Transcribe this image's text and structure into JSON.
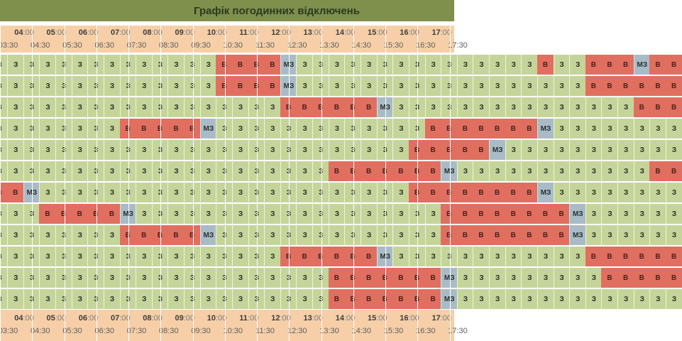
{
  "title": "Графік погодинних відключень",
  "header": {
    "hours": [
      "04:00",
      "05:00",
      "06:00",
      "07:00",
      "08:00",
      "09:00",
      "10:00",
      "11:00",
      "12:00",
      "13:00",
      "14:00",
      "15:00",
      "16:00",
      "17:00"
    ],
    "half_hours": [
      "03:30",
      "04:30",
      "05:30",
      "06:30",
      "07:30",
      "08:30",
      "09:30",
      "10:30",
      "11:30",
      "12:30",
      "13:30",
      "14:30",
      "15:30",
      "16:30",
      "17:30"
    ]
  },
  "legend": {
    "on": "З",
    "off": "В",
    "maybe": "МЗ"
  },
  "colors": {
    "title_bg": "#7f8f4c",
    "header_bg": "#f6cfa8",
    "on": "#c5d59a",
    "off": "#e06f5f",
    "maybe": "#a9bcc6"
  },
  "rows": [
    "ZZZZZZZZZZZZZZBBBBMZZZZZZZZZZZZZZZBZZBBBMBB",
    "ZZZZZZZZZZZZZZBBBBMZZZZZZZZZZZZZZZZZZBBBBBB",
    "ZZZZZZZZZZZZZZZZZZBBBBBBMZZZZZZZZZZZZZZZBBB",
    "ZZZZZZZZBBBBBMZZZZZZZZZZZZZBBBBBBBMZZZZZZZZ",
    "ZZZZZZZZZZZZZZZZZZZZZZZZZZBBBBBMZZZZZZZZZZZ",
    "ZZZZZZZZZZZZZZZZZZZZZBBBBBBBMZZZZZZZZZZZZBB",
    "BBMZZZZZZZZZZZZZZZZZZZZZZZBBBBBBBBMZZZZZZZZ",
    "ZZZBBBBBMZZZZZZZZZZZZZZZZZZZBBBBBBBBMZZZZZZ",
    "ZZZZZZZZBBBBBMZZZZZZZZZZZZZZBBBBBBBBMZZZZZZ",
    "ZZZZZZZZZZZZZZZZZZBBBBBBMZZZZZZZZZZZZBBBBBB",
    "ZZZZZZZZZZZZZZZZZZZZZBBBBBBBMZZZZZZZZZBBBBB",
    "ZZZZZZZZZZZZZZZZZZZZZBBBBBBBMZZZZZZZZZZZZZZ"
  ]
}
